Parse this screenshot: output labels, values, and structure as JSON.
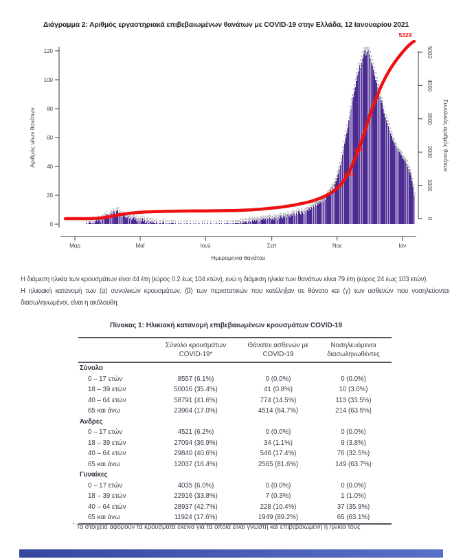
{
  "chart_data": {
    "type": "bar+line",
    "title": "Διάγραμμα 2: Αριθμός εργαστηριακά επιβεβαιωμένων θανάτων με COVID-19 στην Ελλάδα, 12 Ιανουαρίου 2021",
    "xlabel": "Ημερομηνία θανάτου",
    "ylabel_left": "Αριθμός νέων θανάτων",
    "ylabel_right": "Συνολικός αριθμός θανάτων",
    "x_tick_labels": [
      "Μαρ",
      "Μαΐ",
      "Ιουλ",
      "Σεπ",
      "Νοε",
      "Ιαν"
    ],
    "x_tick_day_index": [
      9,
      70,
      131,
      193,
      254,
      315
    ],
    "yticks_left": [
      0,
      20,
      40,
      60,
      80,
      100,
      120
    ],
    "yticks_right": [
      0,
      1000,
      2000,
      3000,
      4000,
      5000
    ],
    "ylim_left": [
      0,
      120
    ],
    "ylim_right": [
      0,
      5000
    ],
    "legend": "off",
    "grid": "off",
    "bar_series_name": "Αριθμός νέων θανάτων",
    "line_series_name": "Συνολικός αριθμός θανάτων",
    "daily_new_deaths": [
      0,
      0,
      0,
      0,
      0,
      0,
      0,
      0,
      0,
      0,
      0,
      0,
      0,
      0,
      0,
      0,
      0,
      0,
      0,
      0,
      1,
      0,
      1,
      2,
      1,
      1,
      2,
      1,
      2,
      3,
      2,
      4,
      3,
      2,
      4,
      5,
      4,
      6,
      5,
      7,
      5,
      6,
      7,
      8,
      6,
      9,
      8,
      7,
      9,
      10,
      6,
      8,
      7,
      5,
      6,
      7,
      5,
      4,
      5,
      6,
      4,
      5,
      3,
      4,
      5,
      3,
      4,
      2,
      3,
      2,
      3,
      2,
      4,
      2,
      3,
      1,
      2,
      3,
      1,
      2,
      2,
      1,
      2,
      1,
      1,
      2,
      1,
      0,
      1,
      1,
      0,
      1,
      2,
      0,
      1,
      1,
      0,
      1,
      0,
      1,
      1,
      1,
      0,
      1,
      0,
      0,
      1,
      0,
      1,
      0,
      0,
      1,
      0,
      1,
      1,
      0,
      0,
      1,
      0,
      0,
      1,
      0,
      1,
      0,
      0,
      1,
      0,
      0,
      1,
      0,
      1,
      0,
      0,
      1,
      0,
      0,
      1,
      0,
      0,
      1,
      0,
      1,
      0,
      0,
      1,
      0,
      1,
      0,
      0,
      1,
      0,
      1,
      1,
      0,
      1,
      0,
      1,
      1,
      0,
      1,
      1,
      1,
      1,
      1,
      2,
      1,
      2,
      1,
      2,
      2,
      1,
      2,
      3,
      2,
      2,
      3,
      2,
      3,
      2,
      3,
      3,
      2,
      4,
      3,
      3,
      4,
      3,
      4,
      3,
      4,
      4,
      5,
      4,
      3,
      4,
      3,
      5,
      4,
      3,
      5,
      4,
      6,
      5,
      4,
      6,
      5,
      6,
      5,
      7,
      6,
      5,
      7,
      6,
      8,
      7,
      6,
      8,
      7,
      9,
      8,
      7,
      9,
      8,
      7,
      9,
      8,
      10,
      9,
      11,
      10,
      12,
      11,
      13,
      12,
      14,
      13,
      15,
      14,
      16,
      15,
      17,
      16,
      18,
      17,
      19,
      20,
      21,
      22,
      24,
      23,
      26,
      25,
      28,
      30,
      32,
      35,
      38,
      41,
      44,
      48,
      52,
      56,
      60,
      63,
      67,
      72,
      76,
      80,
      85,
      88,
      92,
      95,
      99,
      103,
      106,
      110,
      108,
      112,
      115,
      118,
      121,
      117,
      119,
      121,
      118,
      115,
      112,
      110,
      107,
      103,
      100,
      98,
      95,
      92,
      89,
      86,
      84,
      80,
      77,
      74,
      72,
      70,
      68,
      65,
      63,
      61,
      58,
      57,
      55,
      54,
      52,
      51,
      50,
      49,
      48,
      46,
      45,
      44,
      43,
      42,
      40,
      38,
      36,
      34,
      30,
      26,
      20
    ],
    "cumulative_final": 5329,
    "final_annotation": "5329",
    "cumulative_line_annotations": [
      {
        "label": "1330",
        "value": 1330
      },
      {
        "label": "2064",
        "value": 2064
      }
    ],
    "bar_color": "#4c2c92",
    "line_color": "#ee1111",
    "annotation_color": "#ee1111",
    "axis_text_color": "#3c3c3c"
  },
  "paragraphs": {
    "sentence1": "Η διάμεση ηλικία των κρουσμάτων είναι 44 έτη (εύρος 0.2 έως 104 ετών), ενώ η διάμεση ηλικία των θανάτων είναι 79 έτη (εύρος 24 έως 103 ετών).",
    "sentence2": "Η ηλικιακή κατανομή των (α) συνολικών κρουσμάτων, (β) των περιστατικών που κατέληξαν σε θάνατο και (γ) των ασθενών που νοσηλεύονται διασωληνωμένοι, είναι η ακόλουθη:"
  },
  "table": {
    "title": "Πίνακας 1: Ηλικιακή κατανομή επιβεβαιωμένων κρουσμάτων COVID-19",
    "columns": [
      "",
      "Σύνολο κρουσμάτων\nCOVID-19*",
      "Θάνατοι ασθενών με\nCOVID-19",
      "Νοσηλευόμενοι\nδιασωληνωθέντες"
    ],
    "sections": [
      {
        "label": "Σύνολο",
        "rows": [
          [
            "0 – 17 ετών",
            "8557 (6.1%)",
            "0 (0.0%)",
            "0 (0.0%)"
          ],
          [
            "18 – 39 ετών",
            "50016 (35.4%)",
            "41 (0.8%)",
            "10 (3.0%)"
          ],
          [
            "40 – 64 ετών",
            "58791 (41.6%)",
            "774 (14.5%)",
            "113 (33.5%)"
          ],
          [
            "65 και άνω",
            "23964 (17.0%)",
            "4514 (84.7%)",
            "214 (63.5%)"
          ]
        ]
      },
      {
        "label": "Άνδρες",
        "rows": [
          [
            "0 – 17 ετών",
            "4521 (6.2%)",
            "0 (0.0%)",
            "0 (0.0%)"
          ],
          [
            "18 – 39 ετών",
            "27094 (36.9%)",
            "34 (1.1%)",
            "9 (3.8%)"
          ],
          [
            "40 – 64 ετών",
            "29840 (40.6%)",
            "546 (17.4%)",
            "76 (32.5%)"
          ],
          [
            "65 και άνω",
            "12037 (16.4%)",
            "2565 (81.6%)",
            "149 (63.7%)"
          ]
        ]
      },
      {
        "label": "Γυναίκες",
        "rows": [
          [
            "0 – 17 ετών",
            "4035 (6.0%)",
            "0 (0.0%)",
            "0 (0.0%)"
          ],
          [
            "18 – 39 ετών",
            "22916 (33.8%)",
            "7 (0.3%)",
            "1 (1.0%)"
          ],
          [
            "40 – 64 ετών",
            "28937 (42.7%)",
            "228 (10.4%)",
            "37 (35.9%)"
          ],
          [
            "65 και άνω",
            "11924 (17.6%)",
            "1949 (89.2%)",
            "65 (63.1%)"
          ]
        ]
      }
    ],
    "footnote_marker": "*",
    "footnote": "Τα στοιχεία αφορούν τα κρούσματα εκείνα για τα οποία είναι γνωστή και επιβεβαιωμένη η ηλικία τους"
  },
  "footer": {
    "bar_color": "#3d51ae"
  }
}
